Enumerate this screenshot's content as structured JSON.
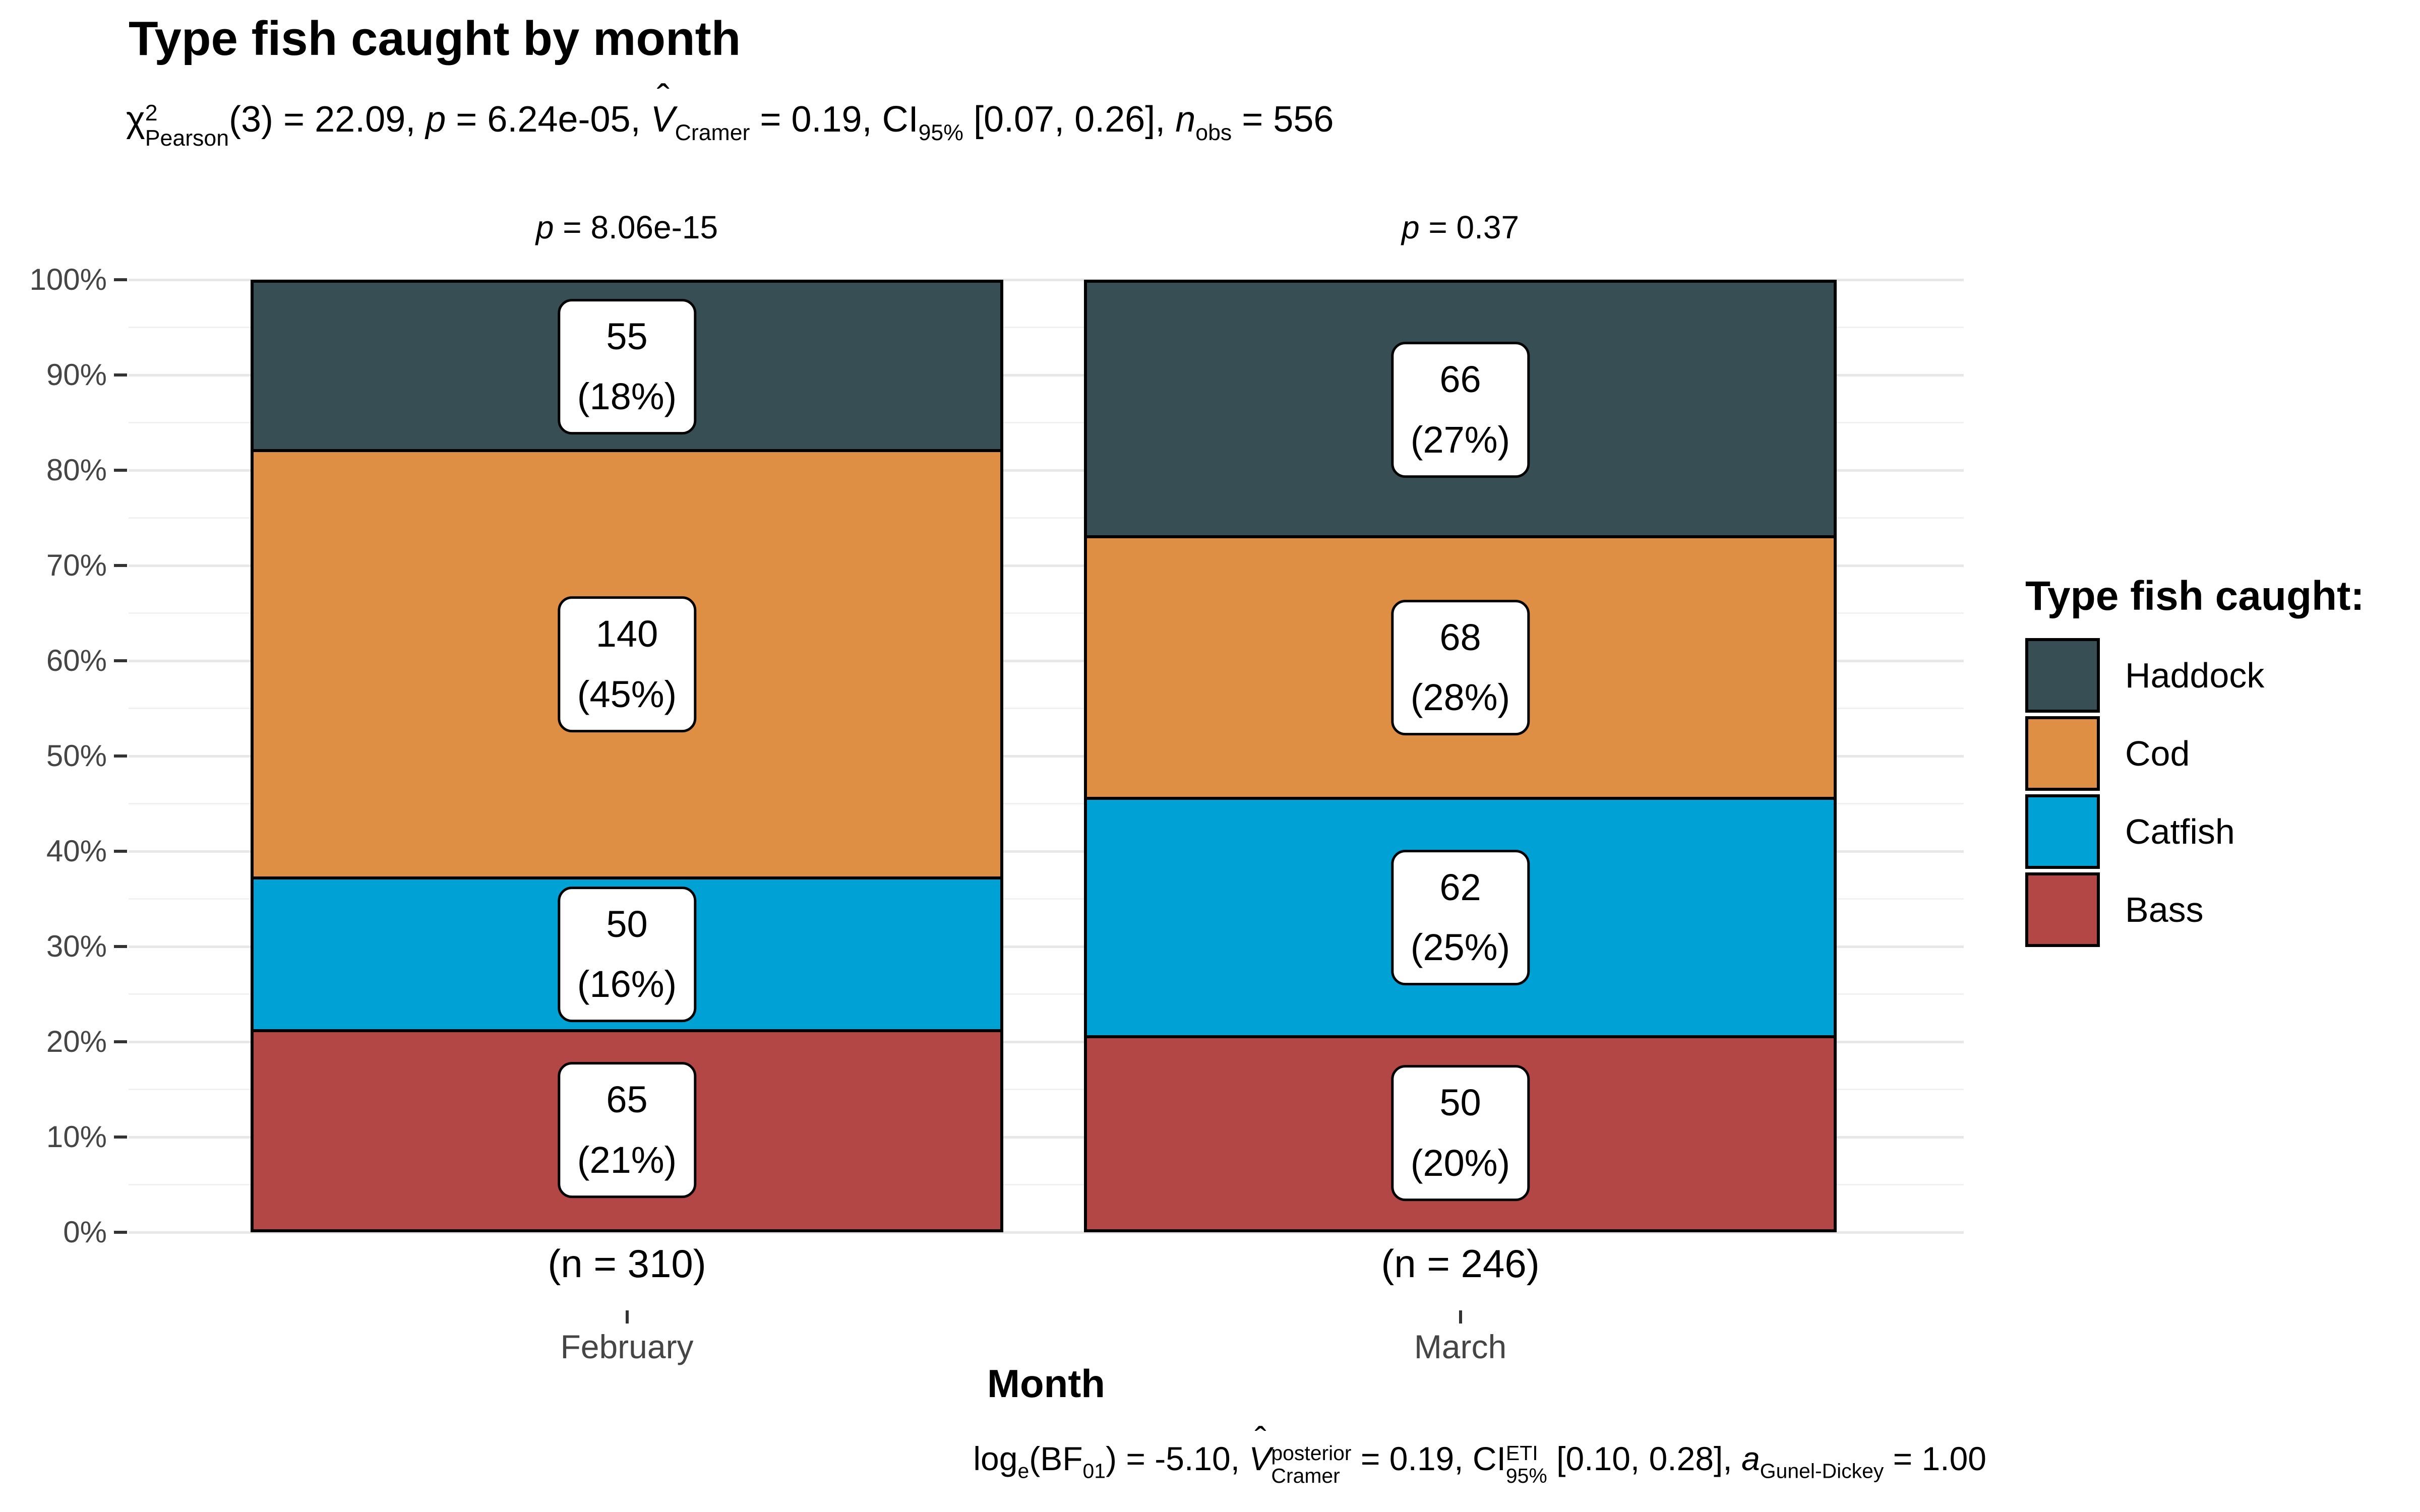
{
  "title": "Type fish caught by month",
  "subtitle": [
    {
      "t": "χ"
    },
    {
      "stack": [
        "2",
        "Pearson"
      ]
    },
    {
      "t": "(3) = 22.09, "
    },
    {
      "i": "p"
    },
    {
      "t": " = 6.24e-05, "
    },
    {
      "i": "V",
      "hat": true
    },
    {
      "sub": "Cramer"
    },
    {
      "t": " = 0.19, CI"
    },
    {
      "sub": "95%"
    },
    {
      "t": " [0.07, 0.26], "
    },
    {
      "i": "n"
    },
    {
      "sub": "obs"
    },
    {
      "t": " = 556"
    }
  ],
  "caption": [
    {
      "t": "log"
    },
    {
      "sub": "e"
    },
    {
      "t": "(BF"
    },
    {
      "sub": "01"
    },
    {
      "t": ") = -5.10, "
    },
    {
      "i": "V",
      "hat": true
    },
    {
      "stack": [
        "posterior",
        "Cramer"
      ]
    },
    {
      "t": " = 0.19, CI"
    },
    {
      "stack": [
        "ETI",
        "95%"
      ]
    },
    {
      "t": " [0.10, 0.28], "
    },
    {
      "i": "a"
    },
    {
      "sub": "Gunel-Dickey"
    },
    {
      "t": " = 1.00"
    }
  ],
  "symbols": {
    "hat": "ˆ"
  },
  "y_axis": {
    "tick_labels": [
      "0%",
      "10%",
      "20%",
      "30%",
      "40%",
      "50%",
      "60%",
      "70%",
      "80%",
      "90%",
      "100%"
    ]
  },
  "x_axis": {
    "title": "Month",
    "categories": [
      {
        "label": "February",
        "n_label": "(n = 310)",
        "p_label": [
          {
            "i": "p"
          },
          {
            "t": " = 8.06e-15"
          }
        ]
      },
      {
        "label": "March",
        "n_label": "(n = 246)",
        "p_label": [
          {
            "i": "p"
          },
          {
            "t": " = 0.37"
          }
        ]
      }
    ]
  },
  "legend": {
    "title": "Type fish caught:",
    "items": [
      {
        "label": "Haddock",
        "color": "#374E55"
      },
      {
        "label": "Cod",
        "color": "#DF8F44"
      },
      {
        "label": "Catfish",
        "color": "#00A1D5"
      },
      {
        "label": "Bass",
        "color": "#B24745"
      }
    ]
  },
  "chart_data": {
    "type": "bar",
    "stacked": true,
    "normalized_percent": true,
    "title": "Type fish caught by month",
    "xlabel": "Month",
    "ylabel": "",
    "ylim": [
      0,
      100
    ],
    "y_tick_step": 10,
    "grid": "horizontal",
    "legend_position": "right",
    "categories": [
      "February",
      "March"
    ],
    "totals": [
      310,
      246
    ],
    "series": [
      {
        "name": "Haddock",
        "color": "#374E55",
        "values": [
          55,
          66
        ],
        "percent_labels": [
          "(18%)",
          "(27%)"
        ]
      },
      {
        "name": "Cod",
        "color": "#DF8F44",
        "values": [
          140,
          68
        ],
        "percent_labels": [
          "(45%)",
          "(28%)"
        ]
      },
      {
        "name": "Catfish",
        "color": "#00A1D5",
        "values": [
          50,
          62
        ],
        "percent_labels": [
          "(16%)",
          "(25%)"
        ]
      },
      {
        "name": "Bass",
        "color": "#B24745",
        "values": [
          65,
          50
        ],
        "percent_labels": [
          "(21%)",
          "(20%)"
        ]
      }
    ],
    "stack_order_bottom_to_top": [
      "Bass",
      "Catfish",
      "Cod",
      "Haddock"
    ],
    "facet_p_values": [
      "p = 8.06e-15",
      "p = 0.37"
    ],
    "subtitle_stats": "chi^2_Pearson(3) = 22.09, p = 6.24e-05, V-hat_Cramer = 0.19, CI_95% [0.07, 0.26], n_obs = 556",
    "caption_stats": "log_e(BF_01) = -5.10, V-hat^posterior_Cramer = 0.19, CI^ETI_95% [0.10, 0.28], a_Gunel-Dickey = 1.00"
  }
}
